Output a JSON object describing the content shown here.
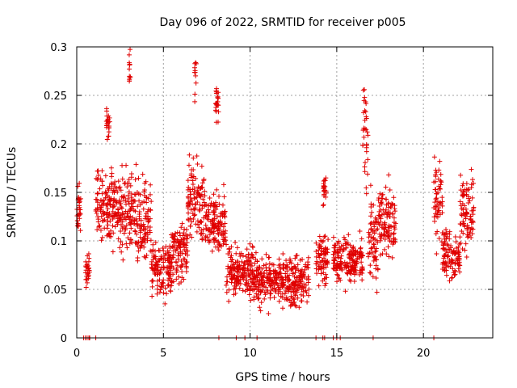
{
  "chart_data": {
    "type": "scatter",
    "title": "Day 096 of 2022, SRMTID for receiver p005",
    "xlabel": "GPS time / hours",
    "ylabel": "SRMTID / TECUs",
    "xlim": [
      0,
      24
    ],
    "ylim": [
      0,
      0.3
    ],
    "x_ticks": [
      0,
      5,
      10,
      15,
      20
    ],
    "x_tick_labels": [
      "0",
      "5",
      "10",
      "15",
      "20"
    ],
    "y_ticks": [
      0,
      0.05,
      0.1,
      0.15,
      0.2,
      0.25,
      0.3
    ],
    "y_tick_labels": [
      "0",
      "0.05",
      "0.1",
      "0.15",
      "0.2",
      "0.25",
      "0.3"
    ],
    "grid": true,
    "marker": "plus",
    "color": "#e00000",
    "series": [
      {
        "name": "SRMTID",
        "segments": [
          {
            "x0": 0.0,
            "x1": 0.25,
            "base": 0.13,
            "spread": 0.03
          },
          {
            "x0": 0.5,
            "x1": 0.75,
            "base": 0.07,
            "spread": 0.02
          },
          {
            "x0": 1.1,
            "x1": 2.3,
            "base": 0.14,
            "spread": 0.035
          },
          {
            "x0": 1.7,
            "x1": 1.9,
            "base": 0.22,
            "spread": 0.02
          },
          {
            "x0": 2.3,
            "x1": 3.5,
            "base": 0.13,
            "spread": 0.04
          },
          {
            "x0": 3.0,
            "x1": 3.1,
            "base": 0.27,
            "spread": 0.03
          },
          {
            "x0": 3.5,
            "x1": 4.3,
            "base": 0.12,
            "spread": 0.035
          },
          {
            "x0": 4.3,
            "x1": 5.5,
            "base": 0.07,
            "spread": 0.025
          },
          {
            "x0": 5.5,
            "x1": 6.4,
            "base": 0.09,
            "spread": 0.03
          },
          {
            "x0": 6.4,
            "x1": 7.4,
            "base": 0.14,
            "spread": 0.035
          },
          {
            "x0": 6.8,
            "x1": 6.9,
            "base": 0.27,
            "spread": 0.03
          },
          {
            "x0": 7.4,
            "x1": 8.6,
            "base": 0.12,
            "spread": 0.03
          },
          {
            "x0": 8.0,
            "x1": 8.2,
            "base": 0.24,
            "spread": 0.02
          },
          {
            "x0": 8.6,
            "x1": 10.2,
            "base": 0.07,
            "spread": 0.025
          },
          {
            "x0": 10.2,
            "x1": 12.0,
            "base": 0.06,
            "spread": 0.025
          },
          {
            "x0": 12.0,
            "x1": 13.4,
            "base": 0.06,
            "spread": 0.025
          },
          {
            "x0": 13.8,
            "x1": 14.5,
            "base": 0.08,
            "spread": 0.03
          },
          {
            "x0": 14.2,
            "x1": 14.4,
            "base": 0.15,
            "spread": 0.015
          },
          {
            "x0": 14.8,
            "x1": 16.5,
            "base": 0.08,
            "spread": 0.02
          },
          {
            "x0": 16.5,
            "x1": 16.8,
            "base": 0.21,
            "spread": 0.06
          },
          {
            "x0": 16.8,
            "x1": 17.4,
            "base": 0.1,
            "spread": 0.04
          },
          {
            "x0": 17.4,
            "x1": 18.4,
            "base": 0.12,
            "spread": 0.035
          },
          {
            "x0": 20.6,
            "x1": 21.1,
            "base": 0.14,
            "spread": 0.05
          },
          {
            "x0": 21.1,
            "x1": 21.6,
            "base": 0.09,
            "spread": 0.025
          },
          {
            "x0": 21.6,
            "x1": 22.1,
            "base": 0.08,
            "spread": 0.02
          },
          {
            "x0": 22.1,
            "x1": 22.9,
            "base": 0.13,
            "spread": 0.04
          }
        ],
        "zero_points": [
          0.4,
          0.5,
          0.6,
          0.7,
          0.75,
          1.1,
          8.2,
          9.2,
          9.7,
          10.4,
          13.8,
          14.2,
          14.3,
          14.8,
          15.0,
          15.2,
          17.1,
          20.6
        ]
      }
    ]
  }
}
